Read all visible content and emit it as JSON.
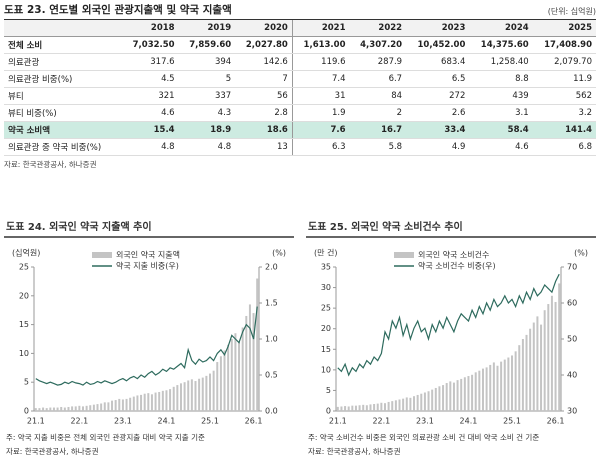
{
  "table": {
    "title": "도표 23. 연도별 외국인 관광지출액 및 약국 지출액",
    "unit": "(단위: 십억원)",
    "header": [
      "2018",
      "2019",
      "2020",
      "2021",
      "2022",
      "2023",
      "2024",
      "2025"
    ],
    "rows": [
      {
        "label": "전체 소비",
        "values": [
          "7,032.50",
          "7,859.60",
          "2,027.80",
          "1,613.00",
          "4,307.20",
          "10,452.00",
          "14,375.60",
          "17,408.90"
        ]
      },
      {
        "label": "의료관광",
        "values": [
          "317.6",
          "394",
          "142.6",
          "119.6",
          "287.9",
          "683.4",
          "1,258.40",
          "2,079.70"
        ]
      },
      {
        "label": "의료관광 비중(%)",
        "values": [
          "4.5",
          "5",
          "7",
          "7.4",
          "6.7",
          "6.5",
          "8.8",
          "11.9"
        ]
      },
      {
        "label": "뷰티",
        "values": [
          "321",
          "337",
          "56",
          "31",
          "84",
          "272",
          "439",
          "562"
        ]
      },
      {
        "label": "뷰티 비중(%)",
        "values": [
          "4.6",
          "4.3",
          "2.8",
          "1.9",
          "2",
          "2.6",
          "3.1",
          "3.2"
        ]
      },
      {
        "label": "약국 소비액",
        "values": [
          "15.4",
          "18.9",
          "18.6",
          "7.6",
          "16.7",
          "33.4",
          "58.4",
          "141.4"
        ]
      },
      {
        "label": "의료관광 중 약국 비중(%)",
        "values": [
          "4.8",
          "4.8",
          "13",
          "6.3",
          "5.8",
          "4.9",
          "4.6",
          "6.8"
        ]
      }
    ],
    "source": "자료: 한국관광공사, 하나증권"
  },
  "chart_data": [
    {
      "type": "bar-line",
      "title": "도표 24. 외국인 약국 지출액 추이",
      "ylabel": "(십억원)",
      "y2label": "(%)",
      "categories": [
        "21.1",
        null,
        null,
        null,
        null,
        null,
        null,
        null,
        null,
        null,
        null,
        null,
        "22.1",
        null,
        null,
        null,
        null,
        null,
        null,
        null,
        null,
        null,
        null,
        null,
        "23.1",
        null,
        null,
        null,
        null,
        null,
        null,
        null,
        null,
        null,
        null,
        null,
        "24.1",
        null,
        null,
        null,
        null,
        null,
        null,
        null,
        null,
        null,
        null,
        null,
        "25.1",
        null,
        null,
        null,
        null,
        null,
        null,
        null,
        null,
        null,
        null,
        null,
        "26.1",
        null
      ],
      "ylim": [
        0,
        25
      ],
      "yticks": [
        0,
        5,
        10,
        15,
        20,
        25
      ],
      "y2lim": [
        0,
        2
      ],
      "y2ticks": [
        {
          "value": 0,
          "label": "0.0"
        },
        0.5,
        {
          "value": 1,
          "label": "1.0"
        },
        1.5,
        {
          "value": 2,
          "label": "2.0"
        }
      ],
      "series": [
        {
          "name": "외국인 약국 지출액",
          "color": "#c4c4c4",
          "values": [
            0.5,
            0.5,
            0.6,
            0.5,
            0.6,
            0.6,
            0.6,
            0.7,
            0.6,
            0.7,
            0.8,
            0.8,
            0.9,
            0.8,
            0.9,
            1.0,
            1.1,
            1.2,
            1.3,
            1.5,
            1.5,
            1.8,
            1.9,
            2.1,
            2.0,
            2.1,
            2.3,
            2.5,
            2.7,
            2.8,
            3.0,
            3.1,
            2.9,
            3.2,
            3.3,
            3.5,
            3.6,
            3.8,
            4.2,
            4.5,
            4.8,
            5.0,
            5.3,
            5.5,
            5.2,
            5.6,
            5.8,
            6.1,
            6.5,
            7.0,
            8.5,
            9.5,
            10.5,
            11.5,
            12.5,
            13.5,
            12.0,
            14.5,
            16.5,
            18.5,
            17.0,
            23.0
          ]
        },
        {
          "name": "약국 지출 비중(우)",
          "color": "#2e6b5e",
          "axis": "y2",
          "values": [
            0.45,
            0.42,
            0.4,
            0.38,
            0.4,
            0.38,
            0.36,
            0.37,
            0.4,
            0.38,
            0.41,
            0.39,
            0.38,
            0.36,
            0.4,
            0.37,
            0.38,
            0.41,
            0.39,
            0.42,
            0.4,
            0.38,
            0.4,
            0.43,
            0.45,
            0.42,
            0.46,
            0.48,
            0.45,
            0.5,
            0.47,
            0.52,
            0.55,
            0.5,
            0.53,
            0.58,
            0.55,
            0.6,
            0.58,
            0.62,
            0.66,
            0.6,
            0.85,
            0.7,
            0.65,
            0.72,
            0.68,
            0.7,
            0.75,
            0.7,
            0.8,
            0.85,
            0.78,
            0.9,
            1.05,
            1.0,
            0.95,
            1.1,
            1.2,
            1.15,
            1.0,
            1.45
          ]
        }
      ],
      "note": "주: 약국 지출 비중은 전체 외국인 관광지출 대비 약국 지출 기준",
      "source": "자료: 한국관광공사, 하나증권"
    },
    {
      "type": "bar-line",
      "title": "도표 25. 외국인 약국 소비건수 추이",
      "ylabel": "(만 건)",
      "y2label": "(%)",
      "categories": [
        "21.1",
        null,
        null,
        null,
        null,
        null,
        null,
        null,
        null,
        null,
        null,
        null,
        "22.1",
        null,
        null,
        null,
        null,
        null,
        null,
        null,
        null,
        null,
        null,
        null,
        "23.1",
        null,
        null,
        null,
        null,
        null,
        null,
        null,
        null,
        null,
        null,
        null,
        "24.1",
        null,
        null,
        null,
        null,
        null,
        null,
        null,
        null,
        null,
        null,
        null,
        "25.1",
        null,
        null,
        null,
        null,
        null,
        null,
        null,
        null,
        null,
        null,
        null,
        "26.1",
        null
      ],
      "ylim": [
        0,
        35
      ],
      "yticks": [
        0,
        5,
        10,
        15,
        20,
        25,
        30,
        35
      ],
      "y2lim": [
        30,
        70
      ],
      "y2ticks": [
        30,
        40,
        50,
        60,
        70
      ],
      "series": [
        {
          "name": "외국인 약국 소비건수",
          "color": "#c4c4c4",
          "values": [
            1.0,
            1.1,
            1.2,
            1.1,
            1.3,
            1.3,
            1.4,
            1.5,
            1.4,
            1.6,
            1.7,
            1.8,
            2.0,
            1.9,
            2.2,
            2.4,
            2.6,
            2.8,
            3.0,
            3.3,
            3.2,
            3.6,
            3.9,
            4.2,
            4.5,
            4.8,
            5.2,
            5.6,
            6.0,
            6.3,
            6.8,
            7.2,
            6.9,
            7.5,
            7.8,
            8.2,
            8.5,
            8.8,
            9.4,
            9.8,
            10.3,
            10.6,
            11.2,
            11.8,
            11.0,
            12.0,
            12.5,
            13.0,
            13.5,
            14.5,
            16.0,
            17.5,
            18.5,
            20.0,
            21.5,
            23.0,
            21.0,
            24.5,
            26.0,
            28.0,
            26.5,
            31.0
          ]
        },
        {
          "name": "약국 소비건수 비중(우)",
          "color": "#2e6b5e",
          "axis": "y2",
          "values": [
            42,
            41,
            43,
            40,
            42,
            41,
            43,
            42,
            44,
            43,
            45,
            44,
            46,
            52,
            50,
            55,
            53,
            56,
            51,
            54,
            50,
            53,
            55,
            52,
            53,
            50,
            54,
            52,
            55,
            53,
            56,
            54,
            52,
            55,
            57,
            56,
            55,
            58,
            56,
            59,
            57,
            60,
            58,
            61,
            59,
            60,
            62,
            60,
            61,
            59,
            62,
            60,
            63,
            61,
            64,
            62,
            63,
            65,
            64,
            63,
            66,
            68
          ]
        }
      ],
      "note": "주: 약국 소비건수 비중은 외국인 의료관광 소비 건 대비 약국 소비 건 기준",
      "source": "자료: 한국관광공사, 하나증권"
    }
  ]
}
